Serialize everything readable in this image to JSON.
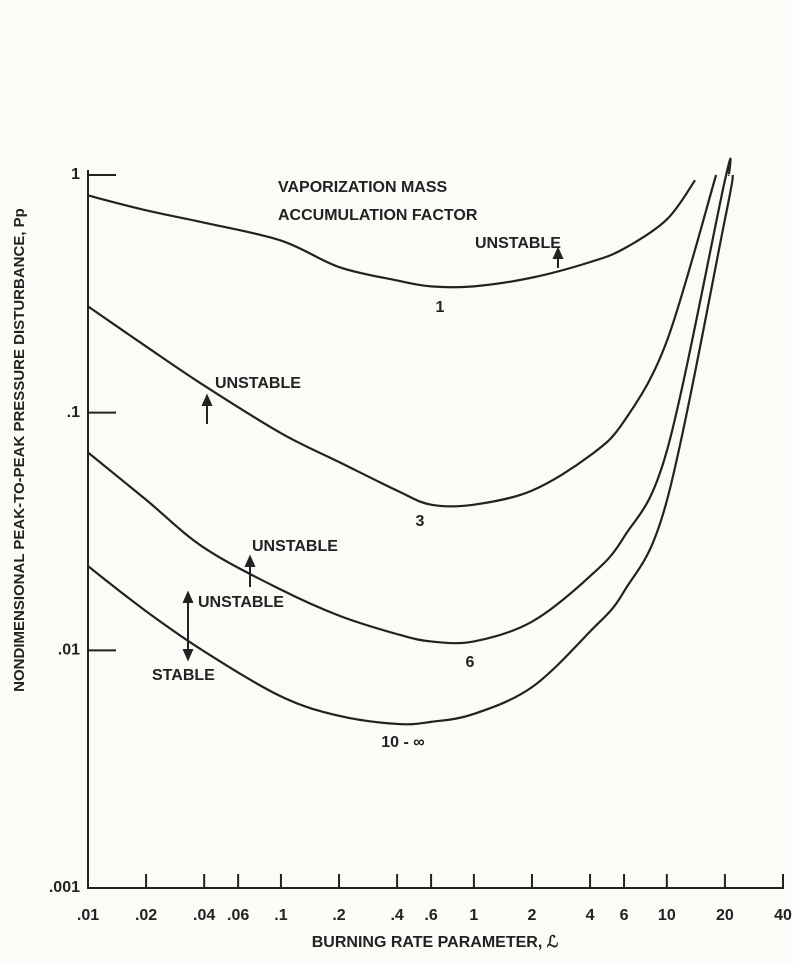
{
  "chart_data": {
    "type": "line",
    "x_label": "BURNING RATE PARAMETER, ℒ",
    "y_label": "NONDIMENSIONAL PEAK-TO-PEAK PRESSURE DISTURBANCE, Pp",
    "log_x": true,
    "log_y": true,
    "grid": false,
    "xlim": [
      0.01,
      40
    ],
    "ylim": [
      0.001,
      1
    ],
    "xticks": [
      {
        "value": 0.01,
        "label": ".01"
      },
      {
        "value": 0.02,
        "label": ".02"
      },
      {
        "value": 0.04,
        "label": ".04"
      },
      {
        "value": 0.06,
        "label": ".06"
      },
      {
        "value": 0.1,
        "label": ".1"
      },
      {
        "value": 0.2,
        "label": ".2"
      },
      {
        "value": 0.4,
        "label": ".4"
      },
      {
        "value": 0.6,
        "label": ".6"
      },
      1,
      2,
      4,
      6,
      10,
      20,
      40
    ],
    "yticks": [
      {
        "value": 0.001,
        "label": ".001"
      },
      {
        "value": 0.01,
        "label": ".01"
      },
      {
        "value": 0.1,
        "label": ".1"
      },
      1
    ],
    "series": [
      {
        "name": "1",
        "color": "#222222",
        "x": [
          0.01,
          0.02,
          0.04,
          0.1,
          0.2,
          0.4,
          0.6,
          1,
          2,
          4,
          6,
          10,
          14
        ],
        "values": [
          0.82,
          0.71,
          0.63,
          0.53,
          0.41,
          0.36,
          0.34,
          0.34,
          0.37,
          0.43,
          0.49,
          0.65,
          0.95
        ]
      },
      {
        "name": "3",
        "color": "#222222",
        "x": [
          0.01,
          0.02,
          0.04,
          0.1,
          0.2,
          0.4,
          0.6,
          1,
          2,
          4,
          6,
          10,
          18
        ],
        "values": [
          0.28,
          0.19,
          0.13,
          0.082,
          0.062,
          0.047,
          0.041,
          0.041,
          0.047,
          0.066,
          0.092,
          0.2,
          1
        ]
      },
      {
        "name": "6",
        "color": "#222222",
        "x": [
          0.01,
          0.02,
          0.04,
          0.1,
          0.2,
          0.4,
          0.6,
          1,
          2,
          4,
          6,
          10,
          20,
          21
        ],
        "values": [
          0.068,
          0.043,
          0.027,
          0.018,
          0.014,
          0.0117,
          0.0109,
          0.0109,
          0.0132,
          0.0205,
          0.03,
          0.069,
          0.95,
          1
        ]
      },
      {
        "name": "10 - ∞",
        "color": "#222222",
        "x": [
          0.01,
          0.02,
          0.04,
          0.1,
          0.2,
          0.4,
          0.6,
          1,
          2,
          4,
          6,
          10,
          20,
          22
        ],
        "values": [
          0.0226,
          0.0146,
          0.0099,
          0.0064,
          0.0053,
          0.0049,
          0.005,
          0.0054,
          0.007,
          0.012,
          0.0177,
          0.0426,
          0.65,
          1
        ]
      }
    ],
    "annotations": [
      "VAPORIZATION MASS",
      "ACCUMULATION FACTOR",
      "UNSTABLE",
      "UNSTABLE",
      "UNSTABLE",
      "UNSTABLE",
      "STABLE"
    ]
  }
}
